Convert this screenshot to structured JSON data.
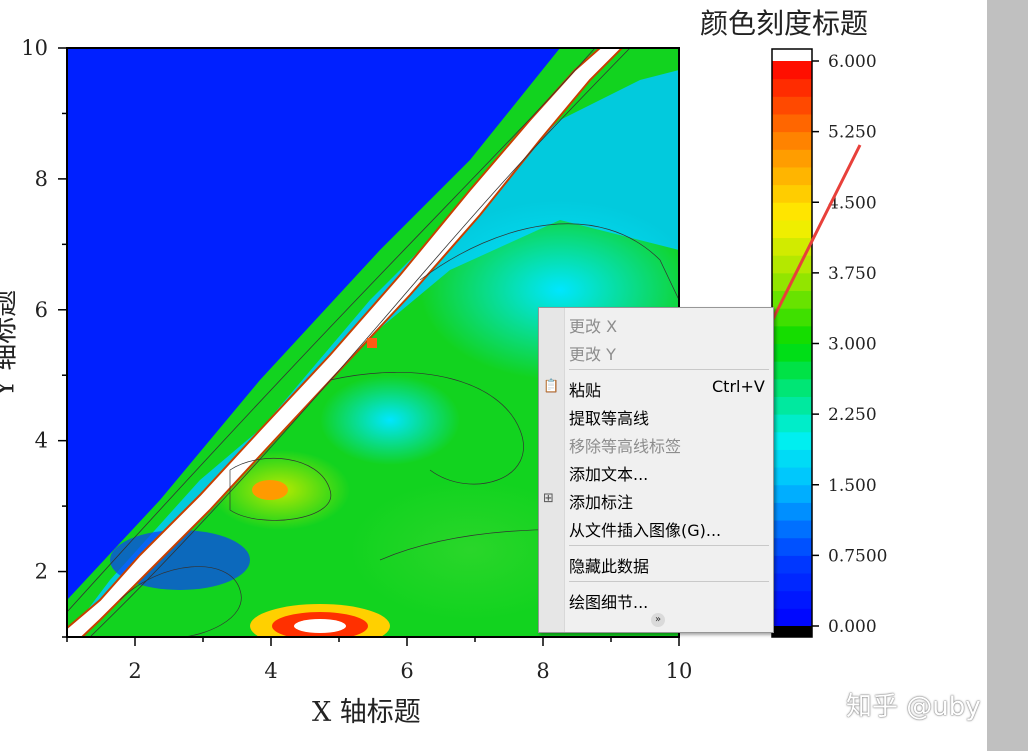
{
  "chart_data": {
    "type": "heatmap",
    "title": "",
    "xlabel": "X 轴标题",
    "ylabel": "Y 轴标题",
    "xlim": [
      1,
      10
    ],
    "ylim": [
      1,
      10
    ],
    "x_ticks": [
      "2",
      "4",
      "6",
      "8",
      "10"
    ],
    "y_ticks": [
      "2",
      "4",
      "6",
      "8",
      "10"
    ],
    "colorbar": {
      "title": "颜色刻度标题",
      "range": [
        0,
        6
      ],
      "ticks": [
        "0.000",
        "0.7500",
        "1.500",
        "2.250",
        "3.000",
        "3.750",
        "4.500",
        "5.250",
        "6.000"
      ],
      "above_color": "#ffffff",
      "below_color": "#000000"
    }
  },
  "context_menu": {
    "items": [
      {
        "label": "更改 X",
        "disabled": true
      },
      {
        "label": "更改 Y",
        "disabled": true
      },
      {
        "label": "粘贴",
        "shortcut": "Ctrl+V",
        "icon": "paste-icon"
      },
      {
        "label": "提取等高线"
      },
      {
        "label": "移除等高线标签",
        "disabled": true
      },
      {
        "label": "添加文本..."
      },
      {
        "label": "添加标注",
        "icon": "annotation-icon"
      },
      {
        "label": "从文件插入图像(G)..."
      },
      {
        "label": "隐藏此数据"
      },
      {
        "label": "绘图细节..."
      }
    ],
    "more_icon": "chevron-double-down-icon"
  },
  "annotation": {
    "arrow_color": "#e8403a"
  },
  "watermark": "知乎 @uby"
}
